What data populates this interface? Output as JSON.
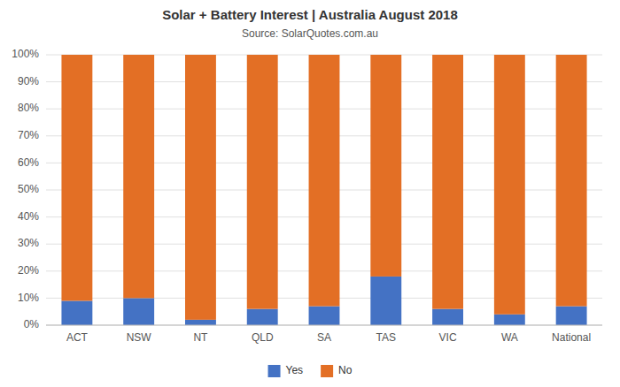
{
  "chart_data": {
    "type": "bar",
    "title": "Solar + Battery Interest  |  Australia August 2018",
    "subtitle": "Source: SolarQuotes.com.au",
    "categories": [
      "ACT",
      "NSW",
      "NT",
      "QLD",
      "SA",
      "TAS",
      "VIC",
      "WA",
      "National"
    ],
    "series": [
      {
        "name": "Yes",
        "color": "#4472c4",
        "values": [
          9,
          10,
          2,
          6,
          7,
          18,
          6,
          4,
          7
        ]
      },
      {
        "name": "No",
        "color": "#e36f25",
        "values": [
          91,
          90,
          98,
          94,
          93,
          82,
          94,
          96,
          93
        ]
      }
    ],
    "stacked": true,
    "ylim": [
      0,
      100
    ],
    "yticks": [
      {
        "value": 0,
        "label": "0%"
      },
      {
        "value": 10,
        "label": "10%"
      },
      {
        "value": 20,
        "label": "20%"
      },
      {
        "value": 30,
        "label": "30%"
      },
      {
        "value": 40,
        "label": "40%"
      },
      {
        "value": 50,
        "label": "50%"
      },
      {
        "value": 60,
        "label": "60%"
      },
      {
        "value": 70,
        "label": "70%"
      },
      {
        "value": 80,
        "label": "80%"
      },
      {
        "value": 90,
        "label": "90%"
      },
      {
        "value": 100,
        "label": "100%"
      }
    ],
    "grid": true,
    "legend": "bottom"
  }
}
